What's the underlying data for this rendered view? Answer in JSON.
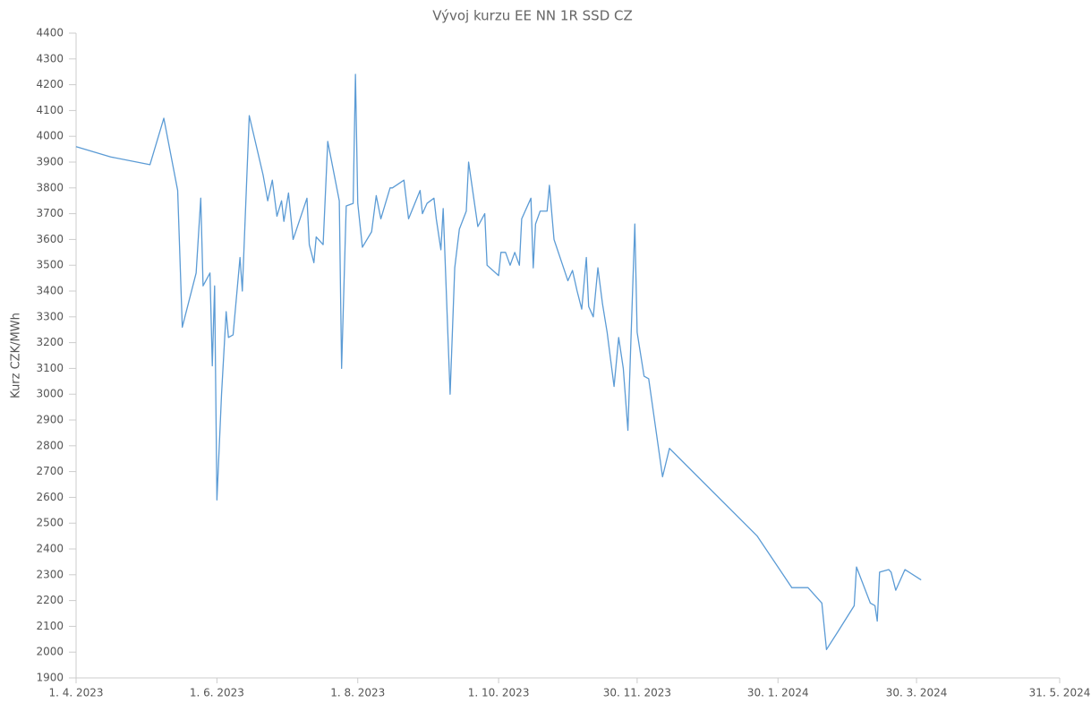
{
  "chart_data": {
    "type": "line",
    "title": "Vývoj kurzu EE NN 1R SSD CZ",
    "y_label": "Kurz CZK/MWh",
    "x": [
      "2023-04-01",
      "2023-04-16",
      "2023-05-03",
      "2023-05-09",
      "2023-05-15",
      "2023-05-17",
      "2023-05-23",
      "2023-05-25",
      "2023-05-26",
      "2023-05-29",
      "2023-05-30",
      "2023-05-31",
      "2023-06-01",
      "2023-06-03",
      "2023-06-05",
      "2023-06-06",
      "2023-06-08",
      "2023-06-11",
      "2023-06-12",
      "2023-06-15",
      "2023-06-21",
      "2023-06-23",
      "2023-06-25",
      "2023-06-27",
      "2023-06-29",
      "2023-06-30",
      "2023-07-02",
      "2023-07-04",
      "2023-07-10",
      "2023-07-11",
      "2023-07-13",
      "2023-07-14",
      "2023-07-17",
      "2023-07-19",
      "2023-07-24",
      "2023-07-25",
      "2023-07-27",
      "2023-07-30",
      "2023-07-31",
      "2023-08-01",
      "2023-08-03",
      "2023-08-07",
      "2023-08-09",
      "2023-08-11",
      "2023-08-15",
      "2023-08-16",
      "2023-08-21",
      "2023-08-23",
      "2023-08-28",
      "2023-08-29",
      "2023-08-31",
      "2023-09-03",
      "2023-09-04",
      "2023-09-06",
      "2023-09-07",
      "2023-09-10",
      "2023-09-12",
      "2023-09-14",
      "2023-09-17",
      "2023-09-18",
      "2023-09-22",
      "2023-09-25",
      "2023-09-26",
      "2023-10-01",
      "2023-10-02",
      "2023-10-04",
      "2023-10-06",
      "2023-10-08",
      "2023-10-10",
      "2023-10-11",
      "2023-10-15",
      "2023-10-16",
      "2023-10-17",
      "2023-10-19",
      "2023-10-22",
      "2023-10-23",
      "2023-10-25",
      "2023-10-31",
      "2023-11-02",
      "2023-11-04",
      "2023-11-06",
      "2023-11-08",
      "2023-11-09",
      "2023-11-11",
      "2023-11-13",
      "2023-11-15",
      "2023-11-17",
      "2023-11-20",
      "2023-11-22",
      "2023-11-24",
      "2023-11-26",
      "2023-11-29",
      "2023-11-30",
      "2023-12-03",
      "2023-12-05",
      "2023-12-11",
      "2023-12-14",
      "2024-01-21",
      "2024-02-05",
      "2024-02-12",
      "2024-02-18",
      "2024-02-20",
      "2024-02-25",
      "2024-03-03",
      "2024-03-04",
      "2024-03-10",
      "2024-03-12",
      "2024-03-13",
      "2024-03-14",
      "2024-03-18",
      "2024-03-19",
      "2024-03-21",
      "2024-03-25",
      "2024-04-01"
    ],
    "series": [
      {
        "name": "Kurz",
        "color": "#5b9bd5",
        "values": [
          3960,
          3920,
          3890,
          4070,
          3790,
          3260,
          3470,
          3760,
          3420,
          3470,
          3110,
          3420,
          2590,
          3000,
          3320,
          3220,
          3230,
          3530,
          3400,
          4080,
          3850,
          3750,
          3830,
          3690,
          3750,
          3670,
          3780,
          3600,
          3760,
          3580,
          3510,
          3610,
          3580,
          3980,
          3750,
          3100,
          3730,
          3740,
          4240,
          3740,
          3570,
          3630,
          3770,
          3680,
          3800,
          3800,
          3830,
          3680,
          3790,
          3700,
          3740,
          3760,
          3680,
          3560,
          3720,
          3000,
          3490,
          3640,
          3710,
          3900,
          3650,
          3700,
          3500,
          3460,
          3550,
          3550,
          3500,
          3550,
          3500,
          3680,
          3760,
          3490,
          3660,
          3710,
          3710,
          3810,
          3600,
          3440,
          3480,
          3400,
          3330,
          3530,
          3340,
          3300,
          3490,
          3350,
          3240,
          3030,
          3220,
          3100,
          2860,
          3660,
          3240,
          3070,
          3060,
          2680,
          2790,
          2450,
          2250,
          2250,
          2190,
          2010,
          2080,
          2180,
          2330,
          2190,
          2180,
          2120,
          2310,
          2320,
          2310,
          2240,
          2320,
          2280
        ]
      }
    ],
    "xlim": [
      "2023-04-01",
      "2024-05-31"
    ],
    "xticks": [
      {
        "value": "2023-04-01",
        "label": "1. 4. 2023"
      },
      {
        "value": "2023-06-01",
        "label": "1. 6. 2023"
      },
      {
        "value": "2023-08-01",
        "label": "1. 8. 2023"
      },
      {
        "value": "2023-10-01",
        "label": "1. 10. 2023"
      },
      {
        "value": "2023-11-30",
        "label": "30. 11. 2023"
      },
      {
        "value": "2024-01-30",
        "label": "30. 1. 2024"
      },
      {
        "value": "2024-03-30",
        "label": "30. 3. 2024"
      },
      {
        "value": "2024-05-31",
        "label": "31. 5. 2024"
      }
    ],
    "ylim": [
      1900,
      4400
    ],
    "yticks": [
      1900,
      2000,
      2100,
      2200,
      2300,
      2400,
      2500,
      2600,
      2700,
      2800,
      2900,
      3000,
      3100,
      3200,
      3300,
      3400,
      3500,
      3600,
      3700,
      3800,
      3900,
      4000,
      4100,
      4200,
      4300,
      4400
    ],
    "grid": false
  }
}
